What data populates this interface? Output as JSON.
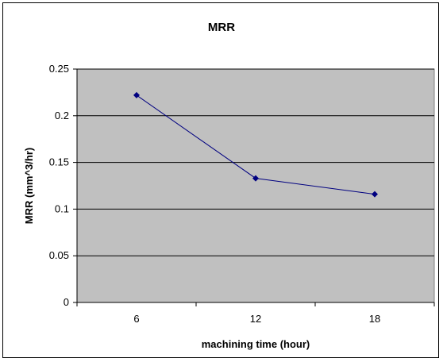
{
  "chart_data": {
    "type": "line",
    "title": "MRR",
    "xlabel": "machining time (hour)",
    "ylabel": "MRR (mm^3/hr)",
    "categories": [
      "6",
      "12",
      "18"
    ],
    "series": [
      {
        "values": [
          0.222,
          0.133,
          0.116
        ],
        "color": "#000080"
      }
    ],
    "ylim": [
      0,
      0.25
    ],
    "yticks": [
      "0",
      "0.05",
      "0.1",
      "0.15",
      "0.2",
      "0.25"
    ],
    "grid": true,
    "legend": "none",
    "plot_background": "#c0c0c0"
  }
}
